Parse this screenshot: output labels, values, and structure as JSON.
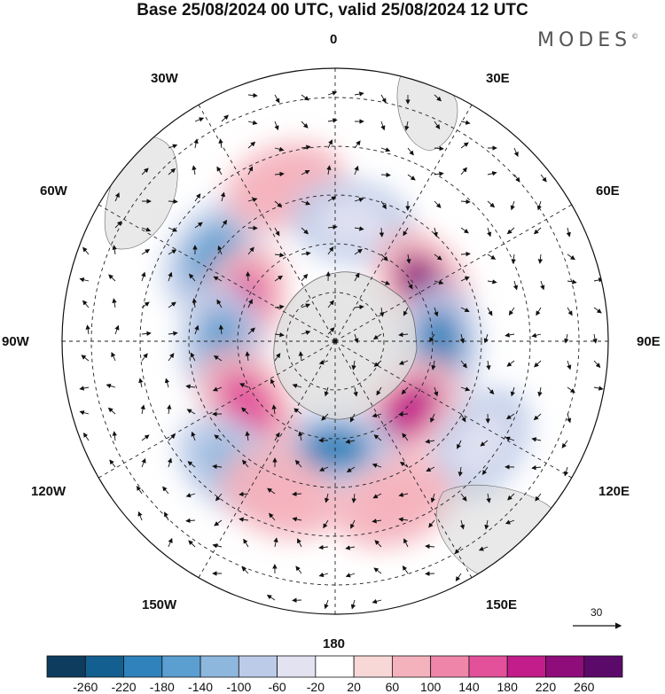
{
  "title": "Base 25/08/2024 00 UTC, valid 25/08/2024 12 UTC",
  "brand": {
    "name": "MODES",
    "mark": "©"
  },
  "longitude_labels": {
    "lon_0": "0",
    "lon_30e": "30E",
    "lon_60e": "60E",
    "lon_90e": "90E",
    "lon_120e": "120E",
    "lon_150e": "150E",
    "lon_180": "180",
    "lon_150w": "150W",
    "lon_120w": "120W",
    "lon_90w": "90W",
    "lon_60w": "60W",
    "lon_30w": "30W"
  },
  "vector_scale": {
    "label": "30",
    "value": 30
  },
  "colorbar": {
    "ticks": [
      "-260",
      "-220",
      "-180",
      "-140",
      "-100",
      "-60",
      "-20",
      "20",
      "60",
      "100",
      "140",
      "180",
      "220",
      "260"
    ],
    "colors": [
      "#0d3c5e",
      "#135f8f",
      "#2f82bc",
      "#5b9fd0",
      "#8eb7de",
      "#bccbe8",
      "#e2e2f1",
      "#ffffff",
      "#f8d7d7",
      "#f4b2bd",
      "#ef86aa",
      "#e2519a",
      "#c21d8a",
      "#8f0d7a",
      "#5c0a6a"
    ]
  },
  "anomaly_blobs": [
    {
      "name": "anomaly-neg-60w",
      "value": -150,
      "lon": -55,
      "colat": 46
    },
    {
      "name": "anomaly-pos-75w",
      "value": 140,
      "lon": -68,
      "colat": 31
    },
    {
      "name": "anomaly-neg-90w",
      "value": -180,
      "lon": -92,
      "colat": 35
    },
    {
      "name": "anomaly-pos-20w",
      "value": 90,
      "lon": -18,
      "colat": 50
    },
    {
      "name": "anomaly-neg-10e",
      "value": -60,
      "lon": 8,
      "colat": 37
    },
    {
      "name": "anomaly-pos-60e",
      "value": 220,
      "lon": 58,
      "colat": 32
    },
    {
      "name": "anomaly-neg-90e",
      "value": -190,
      "lon": 92,
      "colat": 32
    },
    {
      "name": "anomaly-pos-130e",
      "value": 180,
      "lon": 133,
      "colat": 31
    },
    {
      "name": "anomaly-neg-180",
      "value": -190,
      "lon": 180,
      "colat": 33
    },
    {
      "name": "anomaly-pos-120w",
      "value": 170,
      "lon": -125,
      "colat": 33
    },
    {
      "name": "anomaly-neg-140w",
      "value": -130,
      "lon": -140,
      "colat": 50
    },
    {
      "name": "anomaly-neg-120e",
      "value": -60,
      "lon": 125,
      "colat": 55
    },
    {
      "name": "anomaly-pos-160w",
      "value": 70,
      "lon": -160,
      "colat": 50
    },
    {
      "name": "anomaly-pos-160e",
      "value": 60,
      "lon": 160,
      "colat": 53
    }
  ]
}
